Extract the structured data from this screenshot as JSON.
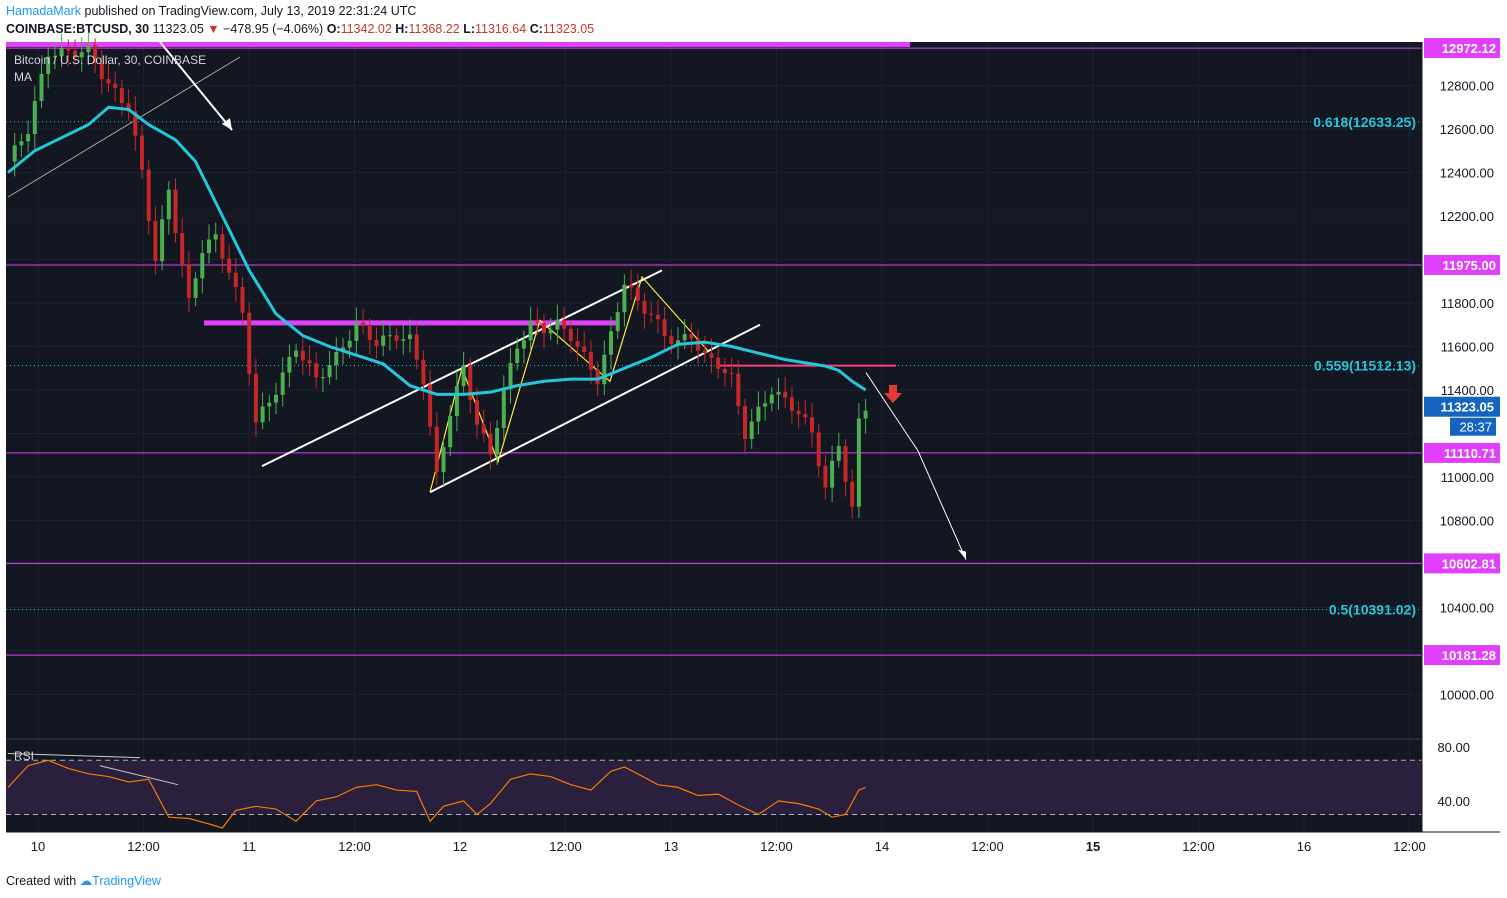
{
  "header": {
    "user": "HamadaMark",
    "published": " published on TradingView.com, July 13, 2019 22:31:24 UTC",
    "symbol": "COINBASE:BTCUSD, 30",
    "price": "11323.05",
    "change": "−478.95 (−4.06%)",
    "o_label": "O:",
    "o": "11342.02",
    "h_label": "H:",
    "h": "11368.22",
    "l_label": "L:",
    "l": "11316.64",
    "c_label": "C:",
    "c": "11323.05"
  },
  "legend": {
    "title": "Bitcoin / U.S. Dollar, 30, COINBASE",
    "ma": "MA",
    "rsi": "RSI"
  },
  "footer": {
    "created": "Created with",
    "brand": "TradingView"
  },
  "colors": {
    "background": "#131722",
    "bull": "#4caf50",
    "bear": "#c62828",
    "ma": "#26c6da",
    "level": "#e040fb",
    "fib": "#26c6da",
    "rsi": "#f57c00",
    "rsi_band": "#2a1f3d",
    "trend": "#ffffff",
    "zigzag": "#ffeb3b",
    "price_tag": "#1565c0",
    "down_arrow": "#e53935"
  },
  "chart_data": {
    "type": "candlestick",
    "symbol": "COINBASE:BTCUSD",
    "interval": "30",
    "ylim": [
      9800,
      13000
    ],
    "y_ticks": [
      10000,
      10200,
      10400,
      10600,
      10800,
      11000,
      11200,
      11400,
      11600,
      11800,
      12000,
      12200,
      12400,
      12600,
      12800
    ],
    "y_tick_labels": [
      "10000.00",
      "",
      "10400.00",
      "",
      "10800.00",
      "11000.00",
      "",
      "11400.00",
      "11600.00",
      "11800.00",
      "",
      "12200.00",
      "12400.00",
      "12600.00",
      "12800.00"
    ],
    "x_ticks": [
      {
        "label": "10",
        "bold": false
      },
      {
        "label": "12:00",
        "bold": false
      },
      {
        "label": "11",
        "bold": false
      },
      {
        "label": "12:00",
        "bold": false
      },
      {
        "label": "12",
        "bold": false
      },
      {
        "label": "12:00",
        "bold": false
      },
      {
        "label": "13",
        "bold": false
      },
      {
        "label": "12:00",
        "bold": false
      },
      {
        "label": "14",
        "bold": false
      },
      {
        "label": "12:00",
        "bold": false
      },
      {
        "label": "15",
        "bold": true
      },
      {
        "label": "12:00",
        "bold": false
      },
      {
        "label": "16",
        "bold": false
      },
      {
        "label": "12:00",
        "bold": false
      }
    ],
    "horizontal_levels": [
      {
        "value": 12972.12,
        "label": "12972.12"
      },
      {
        "value": 11975.0,
        "label": "11975.00"
      },
      {
        "value": 11110.71,
        "label": "11110.71"
      },
      {
        "value": 10602.81,
        "label": "10602.81"
      },
      {
        "value": 10181.28,
        "label": "10181.28"
      }
    ],
    "fib_levels": [
      {
        "value": 12633.25,
        "label": "0.618(12633.25)"
      },
      {
        "value": 11512.13,
        "label": "0.559(11512.13)"
      },
      {
        "value": 10391.02,
        "label": "0.5(10391.02)"
      }
    ],
    "last_price": {
      "value": 11323.05,
      "label": "11323.05",
      "countdown": "28:37"
    },
    "close_path": [
      [
        0,
        12450
      ],
      [
        3,
        12600
      ],
      [
        6,
        12950
      ],
      [
        9,
        12950
      ],
      [
        12,
        12960
      ],
      [
        15,
        12800
      ],
      [
        18,
        12700
      ],
      [
        20,
        12400
      ],
      [
        22,
        12000
      ],
      [
        24,
        12320
      ],
      [
        27,
        11800
      ],
      [
        29,
        12050
      ],
      [
        31,
        12100
      ],
      [
        33,
        11950
      ],
      [
        35,
        11750
      ],
      [
        37,
        11250
      ],
      [
        40,
        11400
      ],
      [
        43,
        11600
      ],
      [
        46,
        11450
      ],
      [
        49,
        11550
      ],
      [
        52,
        11700
      ],
      [
        55,
        11620
      ],
      [
        58,
        11650
      ],
      [
        60,
        11630
      ],
      [
        62,
        11450
      ],
      [
        64,
        11000
      ],
      [
        66,
        11300
      ],
      [
        68,
        11500
      ],
      [
        70,
        11250
      ],
      [
        72,
        11100
      ],
      [
        74,
        11400
      ],
      [
        76,
        11600
      ],
      [
        78,
        11700
      ],
      [
        80,
        11680
      ],
      [
        82,
        11700
      ],
      [
        84,
        11650
      ],
      [
        86,
        11550
      ],
      [
        88,
        11450
      ],
      [
        90,
        11650
      ],
      [
        92,
        11900
      ],
      [
        94,
        11800
      ],
      [
        96,
        11750
      ],
      [
        98,
        11650
      ],
      [
        100,
        11620
      ],
      [
        102,
        11650
      ],
      [
        104,
        11550
      ],
      [
        106,
        11520
      ],
      [
        108,
        11450
      ],
      [
        110,
        11200
      ],
      [
        112,
        11300
      ],
      [
        114,
        11400
      ],
      [
        116,
        11350
      ],
      [
        118,
        11300
      ],
      [
        120,
        11200
      ],
      [
        122,
        10950
      ],
      [
        124,
        11150
      ],
      [
        126,
        10850
      ],
      [
        127,
        11250
      ],
      [
        128,
        11323
      ]
    ],
    "ma_path": [
      [
        0,
        12400
      ],
      [
        4,
        12500
      ],
      [
        8,
        12560
      ],
      [
        12,
        12620
      ],
      [
        15,
        12700
      ],
      [
        18,
        12690
      ],
      [
        21,
        12620
      ],
      [
        25,
        12550
      ],
      [
        28,
        12450
      ],
      [
        32,
        12200
      ],
      [
        36,
        11950
      ],
      [
        40,
        11750
      ],
      [
        44,
        11650
      ],
      [
        48,
        11600
      ],
      [
        52,
        11560
      ],
      [
        56,
        11520
      ],
      [
        60,
        11420
      ],
      [
        64,
        11380
      ],
      [
        68,
        11380
      ],
      [
        72,
        11390
      ],
      [
        76,
        11420
      ],
      [
        80,
        11440
      ],
      [
        84,
        11450
      ],
      [
        88,
        11450
      ],
      [
        92,
        11500
      ],
      [
        96,
        11550
      ],
      [
        100,
        11610
      ],
      [
        104,
        11620
      ],
      [
        108,
        11600
      ],
      [
        112,
        11570
      ],
      [
        116,
        11540
      ],
      [
        118,
        11530
      ],
      [
        120,
        11520
      ],
      [
        122,
        11510
      ],
      [
        124,
        11490
      ],
      [
        126,
        11440
      ],
      [
        128,
        11400
      ]
    ],
    "rsi": {
      "label": "RSI",
      "ylim": [
        20,
        85
      ],
      "upper": 70,
      "lower": 30,
      "tick_labels": [
        "80.00",
        "40.00"
      ],
      "path": [
        [
          0,
          50
        ],
        [
          3,
          66
        ],
        [
          6,
          70
        ],
        [
          9,
          64
        ],
        [
          12,
          60
        ],
        [
          15,
          58
        ],
        [
          18,
          54
        ],
        [
          21,
          56
        ],
        [
          24,
          28
        ],
        [
          27,
          27
        ],
        [
          30,
          23
        ],
        [
          32,
          20
        ],
        [
          34,
          33
        ],
        [
          37,
          36
        ],
        [
          40,
          34
        ],
        [
          43,
          25
        ],
        [
          46,
          40
        ],
        [
          49,
          43
        ],
        [
          52,
          50
        ],
        [
          55,
          52
        ],
        [
          58,
          48
        ],
        [
          61,
          47
        ],
        [
          63,
          25
        ],
        [
          65,
          36
        ],
        [
          68,
          40
        ],
        [
          70,
          30
        ],
        [
          72,
          38
        ],
        [
          75,
          56
        ],
        [
          78,
          60
        ],
        [
          81,
          58
        ],
        [
          84,
          52
        ],
        [
          87,
          48
        ],
        [
          90,
          62
        ],
        [
          92,
          65
        ],
        [
          94,
          60
        ],
        [
          97,
          52
        ],
        [
          100,
          50
        ],
        [
          103,
          44
        ],
        [
          106,
          45
        ],
        [
          109,
          37
        ],
        [
          112,
          30
        ],
        [
          115,
          40
        ],
        [
          118,
          38
        ],
        [
          121,
          34
        ],
        [
          123,
          28
        ],
        [
          125,
          30
        ],
        [
          127,
          48
        ],
        [
          128,
          50
        ]
      ]
    }
  }
}
